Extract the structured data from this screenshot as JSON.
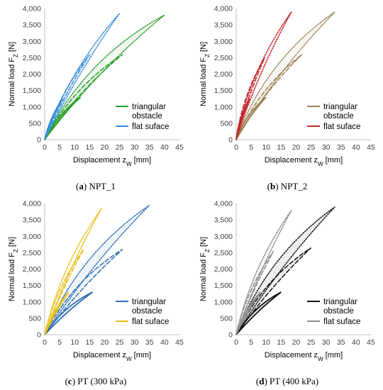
{
  "chart_data": [
    {
      "type": "line",
      "panel_label": "a",
      "panel_name": "NPT_1",
      "xlabel": "Displacement z",
      "xlabel_sub": "W",
      "xlabel_unit": " [mm]",
      "ylabel": "Normal load F",
      "ylabel_sub": "Z",
      "ylabel_unit": " [N]",
      "xlim": [
        0,
        45
      ],
      "ylim": [
        0,
        4000
      ],
      "xticks": [
        "0",
        "5",
        "10",
        "15",
        "20",
        "25",
        "30",
        "35",
        "40",
        "45"
      ],
      "yticks": [
        "0",
        "500",
        "1,000",
        "1,500",
        "2,000",
        "2,500",
        "3,000",
        "3,500",
        "4,000"
      ],
      "legend": [
        {
          "line1": "triangular",
          "line2": "obstacle",
          "color": "#2ca02c"
        },
        {
          "line1": "flat suface",
          "line2": "",
          "color": "#3a8fd6"
        }
      ],
      "series": [
        {
          "color": "#2ca02c",
          "style": "solid",
          "peak": [
            12,
            1300
          ],
          "load_bow": 0.12,
          "unload_bow": 0.06
        },
        {
          "color": "#2ca02c",
          "style": "dashed",
          "peak": [
            26,
            2600
          ],
          "load_bow": 0.13,
          "unload_bow": 0.07
        },
        {
          "color": "#2ca02c",
          "style": "dotted",
          "peak": [
            40,
            3800
          ],
          "load_bow": 0.16,
          "unload_bow": 0.06
        },
        {
          "color": "#3a8fd6",
          "style": "solid",
          "peak": [
            6,
            1250
          ],
          "load_bow": 0.1,
          "unload_bow": 0.05
        },
        {
          "color": "#3a8fd6",
          "style": "dashed",
          "peak": [
            15,
            2600
          ],
          "load_bow": 0.09,
          "unload_bow": 0.04
        },
        {
          "color": "#3a8fd6",
          "style": "dotted",
          "peak": [
            25,
            3850
          ],
          "load_bow": 0.1,
          "unload_bow": 0.04
        }
      ]
    },
    {
      "type": "line",
      "panel_label": "b",
      "panel_name": "NPT_2",
      "xlabel": "Displacement z",
      "xlabel_sub": "W",
      "xlabel_unit": " [mm]",
      "ylabel": "Normal load F",
      "ylabel_sub": "Z",
      "ylabel_unit": " [N]",
      "xlim": [
        0,
        45
      ],
      "ylim": [
        0,
        4000
      ],
      "xticks": [
        "0",
        "5",
        "10",
        "15",
        "20",
        "25",
        "30",
        "35",
        "40",
        "45"
      ],
      "yticks": [
        "0",
        "500",
        "1,000",
        "1,500",
        "2,000",
        "2,500",
        "3,000",
        "3,500",
        "4,000"
      ],
      "legend": [
        {
          "line1": "triangular",
          "line2": "obstacle",
          "color": "#9c8454"
        },
        {
          "line1": "flat suface",
          "line2": "",
          "color": "#c0262c"
        }
      ],
      "series": [
        {
          "color": "#9c8454",
          "style": "solid",
          "peak": [
            10,
            1300
          ],
          "load_bow": 0.13,
          "unload_bow": 0.06
        },
        {
          "color": "#9c8454",
          "style": "dashed",
          "peak": [
            22,
            2600
          ],
          "load_bow": 0.13,
          "unload_bow": 0.07
        },
        {
          "color": "#9c8454",
          "style": "dotted",
          "peak": [
            33,
            3900
          ],
          "load_bow": 0.16,
          "unload_bow": 0.06
        },
        {
          "color": "#c0262c",
          "style": "solid",
          "peak": [
            4.5,
            1250
          ],
          "load_bow": 0.1,
          "unload_bow": 0.05
        },
        {
          "color": "#c0262c",
          "style": "dashed",
          "peak": [
            9.5,
            2500
          ],
          "load_bow": 0.1,
          "unload_bow": 0.04
        },
        {
          "color": "#c0262c",
          "style": "dotted",
          "peak": [
            18.5,
            3900
          ],
          "load_bow": 0.11,
          "unload_bow": 0.05
        }
      ]
    },
    {
      "type": "line",
      "panel_label": "c",
      "panel_name": "PT (300 kPa)",
      "xlabel": "Displacement z",
      "xlabel_sub": "W",
      "xlabel_unit": " [mm]",
      "ylabel": "Normal load F",
      "ylabel_sub": "Z",
      "ylabel_unit": " [N]",
      "xlim": [
        0,
        45
      ],
      "ylim": [
        0,
        4000
      ],
      "xticks": [
        "0",
        "5",
        "10",
        "15",
        "20",
        "25",
        "30",
        "35",
        "40",
        "45"
      ],
      "yticks": [
        "0",
        "500",
        "1,000",
        "1,500",
        "2,000",
        "2,500",
        "3,000",
        "3,500",
        "4,000"
      ],
      "legend": [
        {
          "line1": "triangular",
          "line2": "obstacle",
          "color": "#2e6fb2"
        },
        {
          "line1": "flat suface",
          "line2": "",
          "color": "#e8bf1c"
        }
      ],
      "series": [
        {
          "color": "#2e6fb2",
          "style": "solid",
          "peak": [
            16,
            1300
          ],
          "load_bow": 0.14,
          "unload_bow": 0.05
        },
        {
          "color": "#2e6fb2",
          "style": "dashed",
          "peak": [
            26,
            2600
          ],
          "load_bow": 0.14,
          "unload_bow": 0.05
        },
        {
          "color": "#2e6fb2",
          "style": "dotted",
          "peak": [
            35,
            3950
          ],
          "load_bow": 0.15,
          "unload_bow": 0.05
        },
        {
          "color": "#e8bf1c",
          "style": "solid",
          "peak": [
            8,
            1300
          ],
          "load_bow": 0.1,
          "unload_bow": 0.04
        },
        {
          "color": "#e8bf1c",
          "style": "dashed",
          "peak": [
            13,
            2600
          ],
          "load_bow": 0.1,
          "unload_bow": 0.04
        },
        {
          "color": "#e8bf1c",
          "style": "dotted",
          "peak": [
            19,
            3850
          ],
          "load_bow": 0.1,
          "unload_bow": 0.04
        }
      ]
    },
    {
      "type": "line",
      "panel_label": "d",
      "panel_name": "PT (400 kPa)",
      "xlabel": "Displacement z",
      "xlabel_sub": "W",
      "xlabel_unit": " [mm]",
      "ylabel": "Normal load F",
      "ylabel_sub": "Z",
      "ylabel_unit": " [N]",
      "xlim": [
        0,
        45
      ],
      "ylim": [
        0,
        4000
      ],
      "xticks": [
        "0",
        "5",
        "10",
        "15",
        "20",
        "25",
        "30",
        "35",
        "40",
        "45"
      ],
      "yticks": [
        "0",
        "500",
        "1,000",
        "1,500",
        "2,000",
        "2,500",
        "3,000",
        "3,500",
        "4,000"
      ],
      "legend": [
        {
          "line1": "triangular",
          "line2": "obstacle",
          "color": "#111111"
        },
        {
          "line1": "flat suface",
          "line2": "",
          "color": "#8c8c8c"
        }
      ],
      "series": [
        {
          "color": "#111111",
          "style": "solid",
          "peak": [
            15,
            1300
          ],
          "load_bow": 0.14,
          "unload_bow": 0.05
        },
        {
          "color": "#111111",
          "style": "dashed",
          "peak": [
            25,
            2650
          ],
          "load_bow": 0.14,
          "unload_bow": 0.05
        },
        {
          "color": "#111111",
          "style": "dotted",
          "peak": [
            33,
            3900
          ],
          "load_bow": 0.15,
          "unload_bow": 0.05
        },
        {
          "color": "#8c8c8c",
          "style": "solid",
          "peak": [
            8,
            1300
          ],
          "load_bow": 0.1,
          "unload_bow": 0.04
        },
        {
          "color": "#8c8c8c",
          "style": "dashed",
          "peak": [
            12.5,
            2550
          ],
          "load_bow": 0.1,
          "unload_bow": 0.04
        },
        {
          "color": "#8c8c8c",
          "style": "dotted",
          "peak": [
            18.5,
            3800
          ],
          "load_bow": 0.1,
          "unload_bow": 0.04
        }
      ]
    }
  ]
}
